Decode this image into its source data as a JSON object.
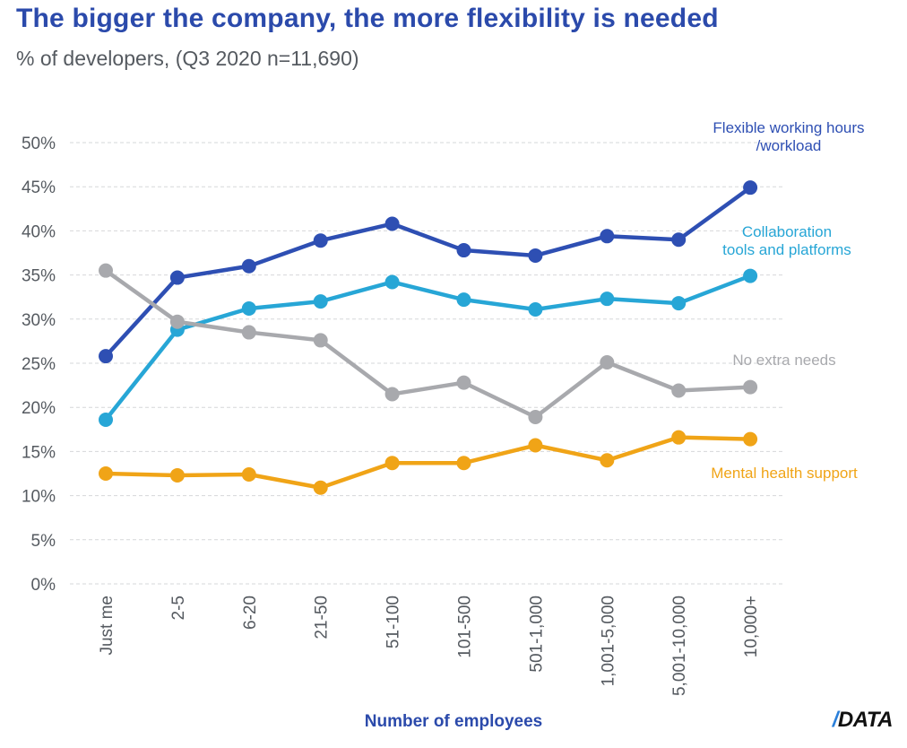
{
  "title": "The bigger the company, the more flexibility is needed",
  "subtitle": "% of developers, (Q3 2020 n=11,690)",
  "brand": {
    "slash": "/",
    "text": "DATA"
  },
  "chart_data": {
    "type": "line",
    "xlabel": "Number of employees",
    "ylabel": "",
    "ylim": [
      0,
      50
    ],
    "yticks": [
      "0%",
      "5%",
      "10%",
      "15%",
      "20%",
      "25%",
      "30%",
      "35%",
      "40%",
      "45%",
      "50%"
    ],
    "ytick_values": [
      0,
      5,
      10,
      15,
      20,
      25,
      30,
      35,
      40,
      45,
      50
    ],
    "categories": [
      "Just me",
      "2-5",
      "6-20",
      "21-50",
      "51-100",
      "101-500",
      "501-1,000",
      "1,001-5,000",
      "5,001-10,000",
      "10,000+"
    ],
    "grid": true,
    "series": [
      {
        "name": "Flexible working hours /workload",
        "label_lines": [
          "Flexible working hours",
          "/workload"
        ],
        "color": "#2e4fb3",
        "values": [
          25.8,
          34.7,
          36.0,
          38.9,
          40.8,
          37.8,
          37.2,
          39.4,
          39.0,
          44.9
        ]
      },
      {
        "name": "Collaboration tools and platforms",
        "label_lines": [
          "Collaboration",
          "tools and platforms"
        ],
        "color": "#27a6d6",
        "values": [
          18.6,
          28.8,
          31.2,
          32.0,
          34.2,
          32.2,
          31.1,
          32.3,
          31.8,
          34.9
        ]
      },
      {
        "name": "No extra needs",
        "label_lines": [
          "No extra needs"
        ],
        "color": "#a8a9ad",
        "values": [
          35.5,
          29.7,
          28.5,
          27.6,
          21.5,
          22.8,
          18.9,
          25.1,
          21.9,
          22.3
        ]
      },
      {
        "name": "Mental health support",
        "label_lines": [
          "Mental health support"
        ],
        "color": "#f0a417",
        "values": [
          12.5,
          12.3,
          12.4,
          10.9,
          13.7,
          13.7,
          15.7,
          14.0,
          16.6,
          16.4
        ]
      }
    ]
  }
}
